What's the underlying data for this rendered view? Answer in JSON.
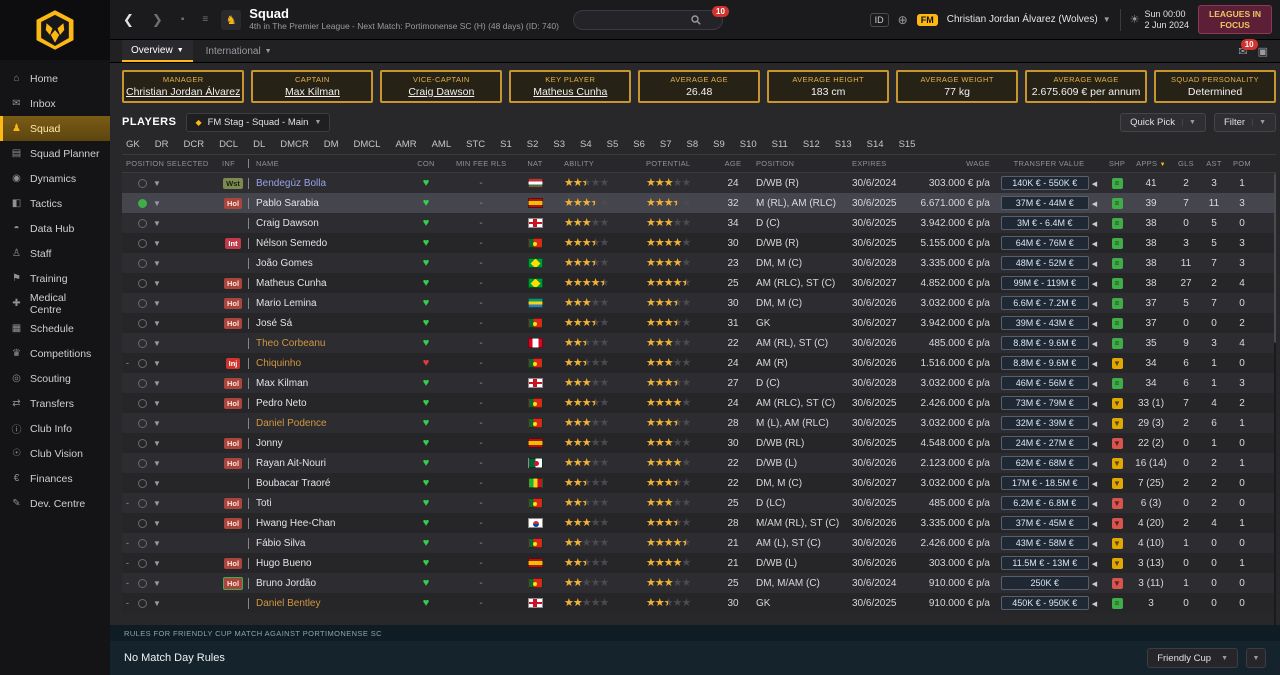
{
  "colors": {
    "gold": "#fdb913",
    "maroon": "#5d1f38",
    "green": "#3fae49",
    "yellow": "#e0a800",
    "red": "#d9534f",
    "listed_name": "#d2963f",
    "loan_name": "#96a2e6"
  },
  "sidebar": {
    "items": [
      {
        "label": "Home",
        "icon": "home-icon",
        "glyph": "⌂"
      },
      {
        "label": "Inbox",
        "icon": "inbox-icon",
        "glyph": "✉"
      },
      {
        "label": "Squad",
        "icon": "squad-icon",
        "glyph": "♟",
        "active": true
      },
      {
        "label": "Squad Planner",
        "icon": "squad-planner-icon",
        "glyph": "▤"
      },
      {
        "label": "Dynamics",
        "icon": "dynamics-icon",
        "glyph": "◉"
      },
      {
        "label": "Tactics",
        "icon": "tactics-icon",
        "glyph": "◧"
      },
      {
        "label": "Data Hub",
        "icon": "data-hub-icon",
        "glyph": "◓"
      },
      {
        "label": "Staff",
        "icon": "staff-icon",
        "glyph": "♙"
      },
      {
        "label": "Training",
        "icon": "training-icon",
        "glyph": "⚑"
      },
      {
        "label": "Medical Centre",
        "icon": "medical-centre-icon",
        "glyph": "✚"
      },
      {
        "label": "Schedule",
        "icon": "schedule-icon",
        "glyph": "▦"
      },
      {
        "label": "Competitions",
        "icon": "competitions-icon",
        "glyph": "♛"
      },
      {
        "label": "Scouting",
        "icon": "scouting-icon",
        "glyph": "◎"
      },
      {
        "label": "Transfers",
        "icon": "transfers-icon",
        "glyph": "⇄"
      },
      {
        "label": "Club Info",
        "icon": "club-info-icon",
        "glyph": "ⓘ"
      },
      {
        "label": "Club Vision",
        "icon": "club-vision-icon",
        "glyph": "☉"
      },
      {
        "label": "Finances",
        "icon": "finances-icon",
        "glyph": "€"
      },
      {
        "label": "Dev. Centre",
        "icon": "dev-centre-icon",
        "glyph": "✎"
      }
    ]
  },
  "topbar": {
    "title": "Squad",
    "subtitle": "4th in The Premier League - Next Match: Portimonense SC (H) (48 days) (ID: 740)",
    "search_badge": "10",
    "id_label": "ID",
    "fm_label": "FM",
    "manager_menu": "Christian Jordan Álvarez (Wolves)",
    "day": "Sun 00:00",
    "date": "2 Jun 2024",
    "leagues_line1": "LEAGUES IN",
    "leagues_line2": "FOCUS"
  },
  "tabs": {
    "overview": "Overview",
    "international": "International",
    "notif_badge": "10"
  },
  "cards": [
    {
      "label": "MANAGER",
      "value": "Christian Jordan Álvarez",
      "link": true
    },
    {
      "label": "CAPTAIN",
      "value": "Max Kilman",
      "link": true
    },
    {
      "label": "VICE-CAPTAIN",
      "value": "Craig Dawson",
      "link": true
    },
    {
      "label": "KEY PLAYER",
      "value": "Matheus Cunha",
      "link": true
    },
    {
      "label": "AVERAGE AGE",
      "value": "26.48",
      "link": false
    },
    {
      "label": "AVERAGE HEIGHT",
      "value": "183 cm",
      "link": false
    },
    {
      "label": "AVERAGE WEIGHT",
      "value": "77 kg",
      "link": false
    },
    {
      "label": "AVERAGE WAGE",
      "value": "2.675.609 € per annum",
      "link": false
    },
    {
      "label": "SQUAD PERSONALITY",
      "value": "Determined",
      "link": false
    }
  ],
  "players_bar": {
    "label": "PLAYERS",
    "view": "FM Stag - Squad - Main",
    "quick_pick": "Quick Pick",
    "filter": "Filter"
  },
  "position_tabs": [
    "GK",
    "DR",
    "DCR",
    "DCL",
    "DL",
    "DMCR",
    "DM",
    "DMCL",
    "AMR",
    "AML",
    "STC",
    "S1",
    "S2",
    "S3",
    "S4",
    "S5",
    "S6",
    "S7",
    "S8",
    "S9",
    "S10",
    "S11",
    "S12",
    "S13",
    "S14",
    "S15"
  ],
  "table": {
    "headers": [
      {
        "label": "POSITION SELECTED"
      },
      {
        "label": "INF"
      },
      {
        "label": "NAME"
      },
      {
        "label": "CON"
      },
      {
        "label": "MIN FEE RLS"
      },
      {
        "label": "NAT"
      },
      {
        "label": "ABILITY"
      },
      {
        "label": "POTENTIAL"
      },
      {
        "label": "AGE"
      },
      {
        "label": "POSITION"
      },
      {
        "label": "EXPIRES"
      },
      {
        "label": "WAGE"
      },
      {
        "label": "TRANSFER VALUE"
      },
      {
        "label": "SHP"
      },
      {
        "label": "APPS",
        "sort": "desc"
      },
      {
        "label": "GLS"
      },
      {
        "label": "AST"
      },
      {
        "label": "POM"
      }
    ],
    "rows": [
      {
        "name": "Bendegúz Bolla",
        "style": "loan",
        "inf": "Wst",
        "inf_style": "wst",
        "lead": "",
        "icon": "circle",
        "con": "ok",
        "minfee": "-",
        "nat": "hu",
        "ability": 2.5,
        "potential": 3,
        "age": "24",
        "position": "D/WB (R)",
        "expires": "30/6/2024",
        "wage": "303.000 € p/a",
        "value": "140K € - 550K €",
        "shp": "green",
        "apps": "41",
        "gls": "2",
        "ast": "3",
        "pom": "1",
        "selected": false
      },
      {
        "name": "Pablo Sarabia",
        "style": "normal",
        "inf": "Hol",
        "inf_style": "hol",
        "lead": "",
        "icon": "circle-green",
        "con": "ok",
        "minfee": "-",
        "nat": "es",
        "ability": 3.5,
        "potential": 3.5,
        "age": "32",
        "position": "M (RL), AM (RLC)",
        "expires": "30/6/2025",
        "wage": "6.671.000 € p/a",
        "value": "37M € - 44M €",
        "shp": "green",
        "apps": "39",
        "gls": "7",
        "ast": "11",
        "pom": "3",
        "selected": true
      },
      {
        "name": "Craig Dawson",
        "style": "normal",
        "inf": "",
        "inf_style": "",
        "lead": "",
        "icon": "circle",
        "con": "ok",
        "minfee": "-",
        "nat": "en",
        "ability": 3,
        "potential": 3,
        "age": "34",
        "position": "D (C)",
        "expires": "30/6/2025",
        "wage": "3.942.000 € p/a",
        "value": "3M € - 6.4M €",
        "shp": "green",
        "apps": "38",
        "gls": "0",
        "ast": "5",
        "pom": "0",
        "selected": false
      },
      {
        "name": "Nélson Semedo",
        "style": "normal",
        "inf": "Int",
        "inf_style": "int",
        "lead": "",
        "icon": "circle",
        "con": "ok",
        "minfee": "-",
        "nat": "pt",
        "ability": 3.5,
        "potential": 4,
        "age": "30",
        "position": "D/WB (R)",
        "expires": "30/6/2025",
        "wage": "5.155.000 € p/a",
        "value": "64M € - 76M €",
        "shp": "green",
        "apps": "38",
        "gls": "3",
        "ast": "5",
        "pom": "3",
        "selected": false
      },
      {
        "name": "João Gomes",
        "style": "normal",
        "inf": "",
        "inf_style": "",
        "lead": "",
        "icon": "circle",
        "con": "ok",
        "minfee": "-",
        "nat": "br",
        "ability": 3.5,
        "potential": 4,
        "age": "23",
        "position": "DM, M (C)",
        "expires": "30/6/2028",
        "wage": "3.335.000 € p/a",
        "value": "48M € - 52M €",
        "shp": "green",
        "apps": "38",
        "gls": "11",
        "ast": "7",
        "pom": "3",
        "selected": false
      },
      {
        "name": "Matheus Cunha",
        "style": "normal",
        "inf": "Hol",
        "inf_style": "hol",
        "lead": "",
        "icon": "circle",
        "con": "ok",
        "minfee": "-",
        "nat": "br",
        "ability": 4.5,
        "potential": 4.5,
        "age": "25",
        "position": "AM (RLC), ST (C)",
        "expires": "30/6/2027",
        "wage": "4.852.000 € p/a",
        "value": "99M € - 119M €",
        "shp": "green",
        "apps": "38",
        "gls": "27",
        "ast": "2",
        "pom": "4",
        "selected": false
      },
      {
        "name": "Mario Lemina",
        "style": "normal",
        "inf": "Hol",
        "inf_style": "hol",
        "lead": "",
        "icon": "circle",
        "con": "ok",
        "minfee": "-",
        "nat": "ga",
        "ability": 3,
        "potential": 3.5,
        "age": "30",
        "position": "DM, M (C)",
        "expires": "30/6/2026",
        "wage": "3.032.000 € p/a",
        "value": "6.6M € - 7.2M €",
        "shp": "green",
        "apps": "37",
        "gls": "5",
        "ast": "7",
        "pom": "0",
        "selected": false
      },
      {
        "name": "José Sá",
        "style": "normal",
        "inf": "Hol",
        "inf_style": "hol",
        "lead": "",
        "icon": "circle",
        "con": "ok",
        "minfee": "-",
        "nat": "pt",
        "ability": 3.5,
        "potential": 3.5,
        "age": "31",
        "position": "GK",
        "expires": "30/6/2027",
        "wage": "3.942.000 € p/a",
        "value": "39M € - 43M €",
        "shp": "green",
        "apps": "37",
        "gls": "0",
        "ast": "0",
        "pom": "2",
        "selected": false
      },
      {
        "name": "Theo Corbeanu",
        "style": "listed",
        "inf": "",
        "inf_style": "",
        "lead": "",
        "icon": "circle",
        "con": "ok",
        "minfee": "-",
        "nat": "ca",
        "ability": 2.5,
        "potential": 3,
        "age": "22",
        "position": "AM (RL), ST (C)",
        "expires": "30/6/2026",
        "wage": "485.000 € p/a",
        "value": "8.8M € - 9.6M €",
        "shp": "green",
        "apps": "35",
        "gls": "9",
        "ast": "3",
        "pom": "4",
        "selected": false
      },
      {
        "name": "Chiquinho",
        "style": "listed",
        "inf": "Inj",
        "inf_style": "inj",
        "lead": "-",
        "icon": "circle",
        "con": "inj",
        "minfee": "-",
        "nat": "pt",
        "ability": 2.5,
        "potential": 3,
        "age": "24",
        "position": "AM (R)",
        "expires": "30/6/2026",
        "wage": "1.516.000 € p/a",
        "value": "8.8M € - 9.6M €",
        "shp": "yellow",
        "apps": "34",
        "gls": "6",
        "ast": "1",
        "pom": "0",
        "selected": false
      },
      {
        "name": "Max Kilman",
        "style": "normal",
        "inf": "Hol",
        "inf_style": "hol",
        "lead": "",
        "icon": "circle",
        "con": "ok",
        "minfee": "-",
        "nat": "en",
        "ability": 3,
        "potential": 3.5,
        "age": "27",
        "position": "D (C)",
        "expires": "30/6/2028",
        "wage": "3.032.000 € p/a",
        "value": "46M € - 56M €",
        "shp": "green",
        "apps": "34",
        "gls": "6",
        "ast": "1",
        "pom": "3",
        "selected": false
      },
      {
        "name": "Pedro Neto",
        "style": "normal",
        "inf": "Hol",
        "inf_style": "hol",
        "lead": "",
        "icon": "circle",
        "con": "ok",
        "minfee": "-",
        "nat": "pt",
        "ability": 3.5,
        "potential": 4,
        "age": "24",
        "position": "AM (RLC), ST (C)",
        "expires": "30/6/2025",
        "wage": "2.426.000 € p/a",
        "value": "73M € - 79M €",
        "shp": "yellow",
        "apps": "33 (1)",
        "gls": "7",
        "ast": "4",
        "pom": "2",
        "selected": false
      },
      {
        "name": "Daniel Podence",
        "style": "listed",
        "inf": "",
        "inf_style": "",
        "lead": "",
        "icon": "circle",
        "con": "ok",
        "minfee": "-",
        "nat": "pt",
        "ability": 3,
        "potential": 3.5,
        "age": "28",
        "position": "M (L), AM (RLC)",
        "expires": "30/6/2025",
        "wage": "3.032.000 € p/a",
        "value": "32M € - 39M €",
        "shp": "yellow",
        "apps": "29 (3)",
        "gls": "2",
        "ast": "6",
        "pom": "1",
        "selected": false
      },
      {
        "name": "Jonny",
        "style": "normal",
        "inf": "Hol",
        "inf_style": "hol",
        "lead": "",
        "icon": "circle",
        "con": "ok",
        "minfee": "-",
        "nat": "es",
        "ability": 3,
        "potential": 3,
        "age": "30",
        "position": "D/WB (RL)",
        "expires": "30/6/2025",
        "wage": "4.548.000 € p/a",
        "value": "24M € - 27M €",
        "shp": "red",
        "apps": "22 (2)",
        "gls": "0",
        "ast": "1",
        "pom": "0",
        "selected": false
      },
      {
        "name": "Rayan Ait-Nouri",
        "style": "normal",
        "inf": "Hol",
        "inf_style": "hol",
        "lead": "",
        "icon": "circle",
        "con": "ok",
        "minfee": "-",
        "nat": "dz",
        "ability": 3,
        "potential": 4,
        "age": "22",
        "position": "D/WB (L)",
        "expires": "30/6/2026",
        "wage": "2.123.000 € p/a",
        "value": "62M € - 68M €",
        "shp": "yellow",
        "apps": "16 (14)",
        "gls": "0",
        "ast": "2",
        "pom": "1",
        "selected": false
      },
      {
        "name": "Boubacar Traoré",
        "style": "normal",
        "inf": "",
        "inf_style": "",
        "lead": "",
        "icon": "circle",
        "con": "ok",
        "minfee": "-",
        "nat": "ml",
        "ability": 2.5,
        "potential": 3.5,
        "age": "22",
        "position": "DM, M (C)",
        "expires": "30/6/2027",
        "wage": "3.032.000 € p/a",
        "value": "17M € - 18.5M €",
        "shp": "yellow",
        "apps": "7 (25)",
        "gls": "2",
        "ast": "2",
        "pom": "0",
        "selected": false
      },
      {
        "name": "Toti",
        "style": "normal",
        "inf": "Hol",
        "inf_style": "hol",
        "lead": "-",
        "icon": "circle",
        "con": "ok",
        "minfee": "-",
        "nat": "pt",
        "ability": 2.5,
        "potential": 3,
        "age": "25",
        "position": "D (LC)",
        "expires": "30/6/2025",
        "wage": "485.000 € p/a",
        "value": "6.2M € - 6.8M €",
        "shp": "red",
        "apps": "6 (3)",
        "gls": "0",
        "ast": "2",
        "pom": "0",
        "selected": false
      },
      {
        "name": "Hwang Hee-Chan",
        "style": "normal",
        "inf": "Hol",
        "inf_style": "hol",
        "lead": "",
        "icon": "circle",
        "con": "ok",
        "minfee": "-",
        "nat": "kr",
        "ability": 3,
        "potential": 3.5,
        "age": "28",
        "position": "M/AM (RL), ST (C)",
        "expires": "30/6/2026",
        "wage": "3.335.000 € p/a",
        "value": "37M € - 45M €",
        "shp": "red",
        "apps": "4 (20)",
        "gls": "2",
        "ast": "4",
        "pom": "1",
        "selected": false
      },
      {
        "name": "Fábio Silva",
        "style": "normal",
        "inf": "",
        "inf_style": "",
        "lead": "-",
        "icon": "circle",
        "con": "ok",
        "minfee": "-",
        "nat": "pt",
        "ability": 2,
        "potential": 4.5,
        "age": "21",
        "position": "AM (L), ST (C)",
        "expires": "30/6/2026",
        "wage": "2.426.000 € p/a",
        "value": "43M € - 58M €",
        "shp": "yellow",
        "apps": "4 (10)",
        "gls": "1",
        "ast": "0",
        "pom": "0",
        "selected": false
      },
      {
        "name": "Hugo Bueno",
        "style": "normal",
        "inf": "Hol",
        "inf_style": "hol",
        "lead": "-",
        "icon": "circle",
        "con": "ok",
        "minfee": "-",
        "nat": "es",
        "ability": 2.5,
        "potential": 4,
        "age": "21",
        "position": "D/WB (L)",
        "expires": "30/6/2026",
        "wage": "303.000 € p/a",
        "value": "11.5M € - 13M €",
        "shp": "yellow",
        "apps": "3 (13)",
        "gls": "0",
        "ast": "0",
        "pom": "1",
        "selected": false
      },
      {
        "name": "Bruno Jordão",
        "style": "normal",
        "inf": "Hol",
        "inf_style": "hol-loan",
        "lead": "-",
        "icon": "circle",
        "con": "ok",
        "minfee": "-",
        "nat": "pt",
        "ability": 2,
        "potential": 3,
        "age": "25",
        "position": "DM, M/AM (C)",
        "expires": "30/6/2024",
        "wage": "910.000 € p/a",
        "value": "250K €",
        "shp": "red",
        "apps": "3 (11)",
        "gls": "1",
        "ast": "0",
        "pom": "0",
        "selected": false
      },
      {
        "name": "Daniel Bentley",
        "style": "listed",
        "inf": "",
        "inf_style": "",
        "lead": "-",
        "icon": "circle",
        "con": "ok",
        "minfee": "-",
        "nat": "en",
        "ability": 2,
        "potential": 2.5,
        "age": "30",
        "position": "GK",
        "expires": "30/6/2025",
        "wage": "910.000 € p/a",
        "value": "450K € - 950K €",
        "shp": "green",
        "apps": "3",
        "gls": "0",
        "ast": "0",
        "pom": "0",
        "selected": false
      }
    ]
  },
  "rules_panel": {
    "header": "RULES FOR FRIENDLY CUP MATCH AGAINST PORTIMONENSE SC",
    "body": "No Match Day Rules",
    "dropdown": "Friendly Cup"
  }
}
